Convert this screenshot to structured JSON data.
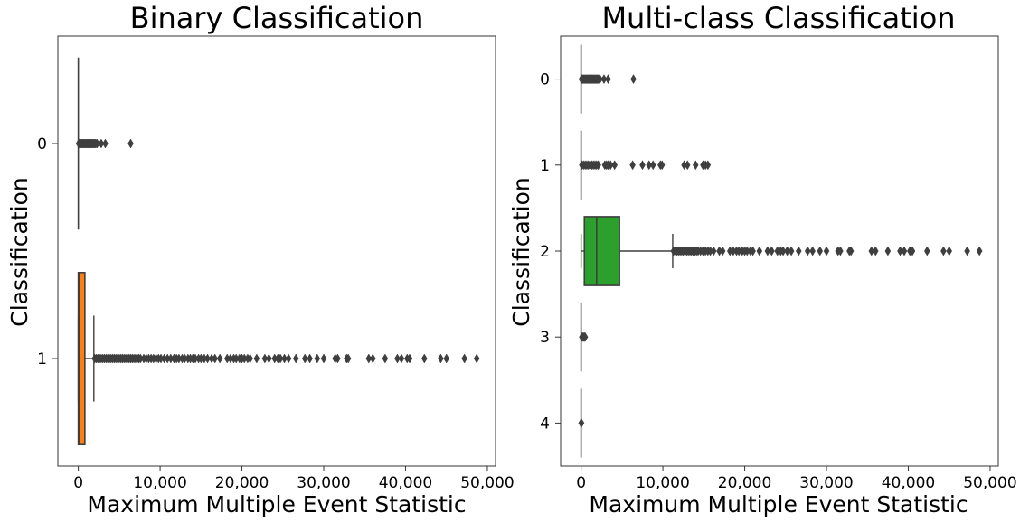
{
  "chart_data": [
    {
      "type": "boxplot",
      "orientation": "horizontal",
      "title": "Binary Classification",
      "xlabel": "Maximum Multiple Event Statistic",
      "ylabel": "Classification",
      "categories": [
        "0",
        "1"
      ],
      "xlim": [
        -2500,
        51000
      ],
      "x_ticks": [
        0,
        10000,
        20000,
        30000,
        40000,
        50000
      ],
      "x_tick_labels": [
        "0",
        "10,000",
        "20,000",
        "30,000",
        "40,000",
        "50,000"
      ],
      "grid": false,
      "boxes": [
        {
          "category": "0",
          "color": "#1f77b4",
          "q1": 0,
          "median": 0,
          "q3": 0,
          "whisker_low": 0,
          "whisker_high": 0,
          "outliers": [
            50,
            150,
            250,
            350,
            450,
            550,
            650,
            750,
            850,
            950,
            1050,
            1150,
            1250,
            1350,
            1450,
            1550,
            1650,
            1750,
            1850,
            1950,
            2050,
            2150,
            2300,
            2800,
            3300,
            6400
          ]
        },
        {
          "category": "1",
          "color": "#ff7f0e",
          "q1": 0,
          "median": 100,
          "q3": 800,
          "whisker_low": 0,
          "whisker_high": 1900,
          "outliers": [
            2000,
            2200,
            2400,
            2600,
            2800,
            3000,
            3200,
            3400,
            3600,
            3800,
            4000,
            4200,
            4400,
            4600,
            4800,
            5000,
            5200,
            5400,
            5600,
            5800,
            6000,
            6200,
            6400,
            6600,
            6800,
            7000,
            7200,
            7400,
            7600,
            8000,
            8300,
            8600,
            8900,
            9200,
            9500,
            9800,
            10100,
            10500,
            10900,
            11300,
            11700,
            12000,
            12300,
            12700,
            13000,
            13400,
            13700,
            14000,
            14300,
            14700,
            15000,
            15400,
            15800,
            16300,
            16700,
            17300,
            18200,
            18600,
            19000,
            19300,
            19700,
            20000,
            20300,
            20700,
            21000,
            21800,
            22800,
            23300,
            24000,
            24400,
            24700,
            25200,
            25700,
            26600,
            27700,
            28300,
            29200,
            30000,
            31400,
            31700,
            32800,
            33000,
            35500,
            36000,
            37500,
            39000,
            39500,
            40200,
            40500,
            42300,
            44300,
            45000,
            47200,
            48700
          ]
        }
      ]
    },
    {
      "type": "boxplot",
      "orientation": "horizontal",
      "title": "Multi-class Classification",
      "xlabel": "Maximum Multiple Event Statistic",
      "ylabel": "Classification",
      "categories": [
        "0",
        "1",
        "2",
        "3",
        "4"
      ],
      "xlim": [
        -2500,
        51000
      ],
      "x_ticks": [
        0,
        10000,
        20000,
        30000,
        40000,
        50000
      ],
      "x_tick_labels": [
        "0",
        "10,000",
        "20,000",
        "30,000",
        "40,000",
        "50,000"
      ],
      "grid": false,
      "boxes": [
        {
          "category": "0",
          "color": "#1f77b4",
          "q1": 0,
          "median": 0,
          "q3": 0,
          "whisker_low": 0,
          "whisker_high": 0,
          "outliers": [
            50,
            150,
            250,
            350,
            450,
            550,
            650,
            750,
            850,
            950,
            1050,
            1150,
            1250,
            1350,
            1450,
            1550,
            1650,
            1750,
            1850,
            1950,
            2050,
            2150,
            2300,
            2800,
            3300,
            6400
          ]
        },
        {
          "category": "1",
          "color": "#ff7f0e",
          "q1": 0,
          "median": 0,
          "q3": 0,
          "whisker_low": 0,
          "whisker_high": 0,
          "outliers": [
            100,
            300,
            500,
            700,
            900,
            1100,
            1300,
            1500,
            1700,
            1900,
            2100,
            2900,
            3100,
            3300,
            3600,
            4100,
            6300,
            7500,
            8300,
            8800,
            9700,
            9900,
            12600,
            13000,
            14000,
            14900,
            15200,
            15500
          ]
        },
        {
          "category": "2",
          "color": "#2ca02c",
          "q1": 400,
          "median": 1900,
          "q3": 4700,
          "whisker_low": 0,
          "whisker_high": 11200,
          "outliers": [
            11300,
            11500,
            11700,
            11900,
            12100,
            12300,
            12500,
            12700,
            12900,
            13100,
            13300,
            13500,
            13700,
            13900,
            14100,
            14300,
            14600,
            14900,
            15200,
            15500,
            15800,
            16200,
            16900,
            17300,
            18200,
            18600,
            19000,
            19300,
            19700,
            20000,
            20300,
            20700,
            21000,
            21800,
            22800,
            23300,
            24000,
            24400,
            24700,
            25200,
            25700,
            26600,
            27700,
            28300,
            29200,
            30000,
            31400,
            31700,
            32800,
            33000,
            35500,
            36000,
            37500,
            39000,
            39500,
            40200,
            40500,
            42300,
            44300,
            45000,
            47200,
            48700
          ]
        },
        {
          "category": "3",
          "color": "#d62728",
          "q1": 0,
          "median": 0,
          "q3": 0,
          "whisker_low": 0,
          "whisker_high": 0,
          "outliers": [
            100,
            200,
            300,
            400,
            500
          ]
        },
        {
          "category": "4",
          "color": "#9467bd",
          "q1": 0,
          "median": 0,
          "q3": 0,
          "whisker_low": 0,
          "whisker_high": 0,
          "outliers": [
            20,
            40
          ]
        }
      ]
    }
  ]
}
